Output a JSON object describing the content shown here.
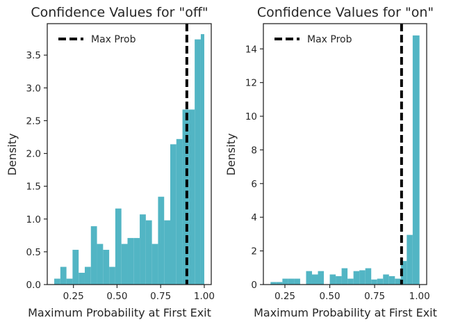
{
  "colors": {
    "bar": "#52b5c4",
    "max_line": "#000000",
    "axes": "#262626",
    "background": "#ffffff"
  },
  "legend": {
    "label": "Max Prob",
    "placement": "upper-left",
    "icon": "dashed-line-icon"
  },
  "chart_data": [
    {
      "type": "histogram",
      "title": "Confidence Values for \"off\"",
      "xlabel": "Maximum Probability at First Exit",
      "ylabel": "Density",
      "xlim": [
        0.1,
        1.04
      ],
      "ylim": [
        0,
        3.98
      ],
      "xticks": [
        0.25,
        0.5,
        0.75,
        1.0
      ],
      "xtick_labels": [
        "0.25",
        "0.50",
        "0.75",
        "1.00"
      ],
      "yticks": [
        0.0,
        0.5,
        1.0,
        1.5,
        2.0,
        2.5,
        3.0,
        3.5
      ],
      "ytick_labels": [
        "0.0",
        "0.5",
        "1.0",
        "1.5",
        "2.0",
        "2.5",
        "3.0",
        "3.5"
      ],
      "grid": false,
      "bins": [
        0.14,
        0.175,
        0.21,
        0.245,
        0.28,
        0.315,
        0.35,
        0.385,
        0.42,
        0.455,
        0.49,
        0.525,
        0.56,
        0.595,
        0.63,
        0.665,
        0.7,
        0.735,
        0.77,
        0.805,
        0.84,
        0.875,
        0.91,
        0.945,
        0.98,
        1.0
      ],
      "values": [
        0.09,
        0.27,
        0.09,
        0.53,
        0.18,
        0.27,
        0.89,
        0.62,
        0.53,
        0.27,
        1.16,
        0.62,
        0.71,
        0.71,
        1.07,
        0.98,
        0.62,
        1.34,
        0.98,
        2.14,
        2.22,
        2.67,
        2.67,
        3.74,
        3.82
      ],
      "max_prob_line": 0.9,
      "series": [
        {
          "name": "Max Prob"
        }
      ]
    },
    {
      "type": "histogram",
      "title": "Confidence Values for \"on\"",
      "xlabel": "Maximum Probability at First Exit",
      "ylabel": "Density",
      "xlim": [
        0.13,
        1.04
      ],
      "ylim": [
        0,
        15.5
      ],
      "xticks": [
        0.25,
        0.5,
        0.75,
        1.0
      ],
      "xtick_labels": [
        "0.25",
        "0.50",
        "0.75",
        "1.00"
      ],
      "yticks": [
        0,
        2,
        4,
        6,
        8,
        10,
        12,
        14
      ],
      "ytick_labels": [
        "0",
        "2",
        "4",
        "6",
        "8",
        "10",
        "12",
        "14"
      ],
      "grid": false,
      "bins": [
        0.17,
        0.203,
        0.236,
        0.269,
        0.302,
        0.335,
        0.368,
        0.401,
        0.434,
        0.467,
        0.5,
        0.533,
        0.566,
        0.599,
        0.632,
        0.665,
        0.698,
        0.731,
        0.764,
        0.797,
        0.83,
        0.863,
        0.896,
        0.929,
        0.962,
        1.0
      ],
      "values": [
        0.15,
        0.15,
        0.35,
        0.35,
        0.35,
        0.0,
        0.8,
        0.6,
        0.8,
        0.0,
        0.6,
        0.5,
        0.97,
        0.35,
        0.8,
        0.85,
        0.97,
        0.3,
        0.35,
        0.6,
        0.5,
        0.35,
        1.4,
        2.95,
        14.8
      ],
      "max_prob_line": 0.9,
      "series": [
        {
          "name": "Max Prob"
        }
      ]
    }
  ]
}
